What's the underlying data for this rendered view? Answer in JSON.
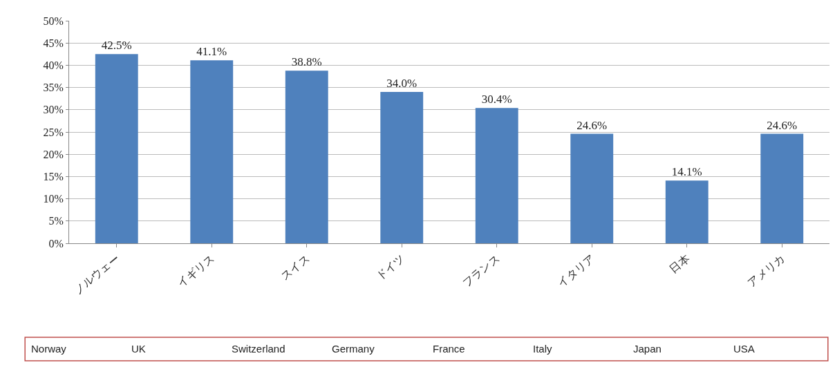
{
  "chart_data": {
    "type": "bar",
    "categories": [
      "ノルウェー",
      "イギリス",
      "スイス",
      "ドイツ",
      "フランス",
      "イタリア",
      "日本",
      "アメリカ"
    ],
    "values": [
      42.5,
      41.1,
      38.8,
      34.0,
      30.4,
      24.6,
      14.1,
      24.6
    ],
    "value_labels": [
      "42.5%",
      "41.1%",
      "38.8%",
      "34.0%",
      "30.4%",
      "24.6%",
      "14.1%",
      "24.6%"
    ],
    "color": "#4f81bd",
    "ylim": [
      0,
      50
    ],
    "yticks": [
      {
        "value": 0,
        "label": "0%"
      },
      {
        "value": 5,
        "label": "5%"
      },
      {
        "value": 10,
        "label": "10%"
      },
      {
        "value": 15,
        "label": "15%"
      },
      {
        "value": 20,
        "label": "20%"
      },
      {
        "value": 25,
        "label": "25%"
      },
      {
        "value": 30,
        "label": "30%"
      },
      {
        "value": 35,
        "label": "35%"
      },
      {
        "value": 40,
        "label": "40%"
      },
      {
        "value": 45,
        "label": "45%"
      },
      {
        "value": 50,
        "label": "50%"
      }
    ],
    "grid": "y",
    "annotations": [
      "Norway",
      "UK",
      "Switzerland",
      "Germany",
      "France",
      "Italy",
      "Japan",
      "USA"
    ]
  }
}
